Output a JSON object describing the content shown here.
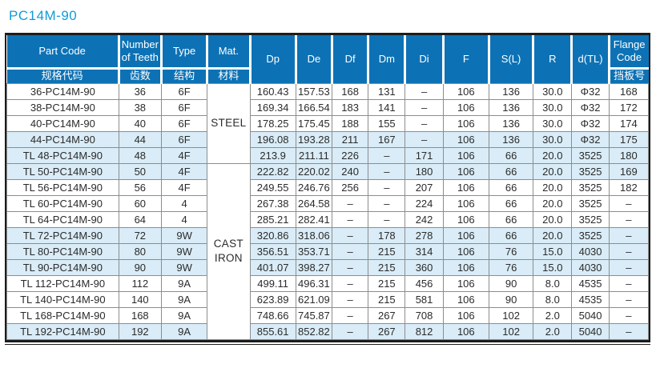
{
  "title": "PC14M-90",
  "colors": {
    "title_text": "#0f9cd8",
    "header_bg": "#0d72b5",
    "header_text": "#ffffff",
    "row_alt_bg": "#d9ecf7",
    "grid_line": "#8d8d8d",
    "outer_border": "#1c1c1c",
    "body_text": "#2b2b2b"
  },
  "table": {
    "columns": [
      {
        "key": "part",
        "en": "Part Code",
        "zh": "规格代码",
        "w": 139
      },
      {
        "key": "teeth",
        "en": "Number of Teeth",
        "zh": "齿数",
        "w": 53
      },
      {
        "key": "type",
        "en": "Type",
        "zh": "结构",
        "w": 57
      },
      {
        "key": "mat",
        "en": "Mat.",
        "zh": "材料",
        "w": 53
      },
      {
        "key": "dp",
        "en": "Dp",
        "w": 57
      },
      {
        "key": "de",
        "en": "De",
        "w": 45
      },
      {
        "key": "df",
        "en": "Df",
        "w": 45
      },
      {
        "key": "dm",
        "en": "Dm",
        "w": 46
      },
      {
        "key": "di",
        "en": "Di",
        "w": 47
      },
      {
        "key": "f",
        "en": "F",
        "w": 57
      },
      {
        "key": "sl",
        "en": "S(L)",
        "w": 55
      },
      {
        "key": "r",
        "en": "R",
        "w": 48
      },
      {
        "key": "dtl",
        "en": "d(TL)",
        "w": 46
      },
      {
        "key": "flange",
        "en": "Flange Code",
        "zh": "挡板号",
        "w": 49
      }
    ],
    "materials": [
      {
        "label": "STEEL",
        "rows": 5
      },
      {
        "label": "CAST IRON",
        "rows": 11
      }
    ],
    "rows": [
      {
        "part": "36-PC14M-90",
        "teeth": "36",
        "type": "6F",
        "dp": "160.43",
        "de": "157.53",
        "df": "168",
        "dm": "131",
        "di": "–",
        "f": "106",
        "sl": "136",
        "r": "30.0",
        "dtl": "Φ32",
        "flange": "168",
        "shaded": false
      },
      {
        "part": "38-PC14M-90",
        "teeth": "38",
        "type": "6F",
        "dp": "169.34",
        "de": "166.54",
        "df": "183",
        "dm": "141",
        "di": "–",
        "f": "106",
        "sl": "136",
        "r": "30.0",
        "dtl": "Φ32",
        "flange": "172",
        "shaded": false
      },
      {
        "part": "40-PC14M-90",
        "teeth": "40",
        "type": "6F",
        "dp": "178.25",
        "de": "175.45",
        "df": "188",
        "dm": "155",
        "di": "–",
        "f": "106",
        "sl": "136",
        "r": "30.0",
        "dtl": "Φ32",
        "flange": "174",
        "shaded": false
      },
      {
        "part": "44-PC14M-90",
        "teeth": "44",
        "type": "6F",
        "dp": "196.08",
        "de": "193.28",
        "df": "211",
        "dm": "167",
        "di": "–",
        "f": "106",
        "sl": "136",
        "r": "30.0",
        "dtl": "Φ32",
        "flange": "175",
        "shaded": true
      },
      {
        "part": "TL 48-PC14M-90",
        "teeth": "48",
        "type": "4F",
        "dp": "213.9",
        "de": "211.11",
        "df": "226",
        "dm": "–",
        "di": "171",
        "f": "106",
        "sl": "66",
        "r": "20.0",
        "dtl": "3525",
        "flange": "180",
        "shaded": true
      },
      {
        "part": "TL 50-PC14M-90",
        "teeth": "50",
        "type": "4F",
        "dp": "222.82",
        "de": "220.02",
        "df": "240",
        "dm": "–",
        "di": "180",
        "f": "106",
        "sl": "66",
        "r": "20.0",
        "dtl": "3525",
        "flange": "169",
        "shaded": true
      },
      {
        "part": "TL 56-PC14M-90",
        "teeth": "56",
        "type": "4F",
        "dp": "249.55",
        "de": "246.76",
        "df": "256",
        "dm": "–",
        "di": "207",
        "f": "106",
        "sl": "66",
        "r": "20.0",
        "dtl": "3525",
        "flange": "182",
        "shaded": false
      },
      {
        "part": "TL 60-PC14M-90",
        "teeth": "60",
        "type": "4",
        "dp": "267.38",
        "de": "264.58",
        "df": "–",
        "dm": "–",
        "di": "224",
        "f": "106",
        "sl": "66",
        "r": "20.0",
        "dtl": "3525",
        "flange": "–",
        "shaded": false
      },
      {
        "part": "TL 64-PC14M-90",
        "teeth": "64",
        "type": "4",
        "dp": "285.21",
        "de": "282.41",
        "df": "–",
        "dm": "–",
        "di": "242",
        "f": "106",
        "sl": "66",
        "r": "20.0",
        "dtl": "3525",
        "flange": "–",
        "shaded": false
      },
      {
        "part": "TL 72-PC14M-90",
        "teeth": "72",
        "type": "9W",
        "dp": "320.86",
        "de": "318.06",
        "df": "–",
        "dm": "178",
        "di": "278",
        "f": "106",
        "sl": "66",
        "r": "20.0",
        "dtl": "3525",
        "flange": "–",
        "shaded": true
      },
      {
        "part": "TL 80-PC14M-90",
        "teeth": "80",
        "type": "9W",
        "dp": "356.51",
        "de": "353.71",
        "df": "–",
        "dm": "215",
        "di": "314",
        "f": "106",
        "sl": "76",
        "r": "15.0",
        "dtl": "4030",
        "flange": "–",
        "shaded": true
      },
      {
        "part": "TL 90-PC14M-90",
        "teeth": "90",
        "type": "9W",
        "dp": "401.07",
        "de": "398.27",
        "df": "–",
        "dm": "215",
        "di": "360",
        "f": "106",
        "sl": "76",
        "r": "15.0",
        "dtl": "4030",
        "flange": "–",
        "shaded": true
      },
      {
        "part": "TL 112-PC14M-90",
        "teeth": "112",
        "type": "9A",
        "dp": "499.11",
        "de": "496.31",
        "df": "–",
        "dm": "215",
        "di": "456",
        "f": "106",
        "sl": "90",
        "r": "8.0",
        "dtl": "4535",
        "flange": "–",
        "shaded": false
      },
      {
        "part": "TL 140-PC14M-90",
        "teeth": "140",
        "type": "9A",
        "dp": "623.89",
        "de": "621.09",
        "df": "–",
        "dm": "215",
        "di": "581",
        "f": "106",
        "sl": "90",
        "r": "8.0",
        "dtl": "4535",
        "flange": "–",
        "shaded": false
      },
      {
        "part": "TL 168-PC14M-90",
        "teeth": "168",
        "type": "9A",
        "dp": "748.66",
        "de": "745.87",
        "df": "–",
        "dm": "267",
        "di": "708",
        "f": "106",
        "sl": "102",
        "r": "2.0",
        "dtl": "5040",
        "flange": "–",
        "shaded": false
      },
      {
        "part": "TL 192-PC14M-90",
        "teeth": "192",
        "type": "9A",
        "dp": "855.61",
        "de": "852.82",
        "df": "–",
        "dm": "267",
        "di": "812",
        "f": "106",
        "sl": "102",
        "r": "2.0",
        "dtl": "5040",
        "flange": "–",
        "shaded": true
      }
    ]
  }
}
